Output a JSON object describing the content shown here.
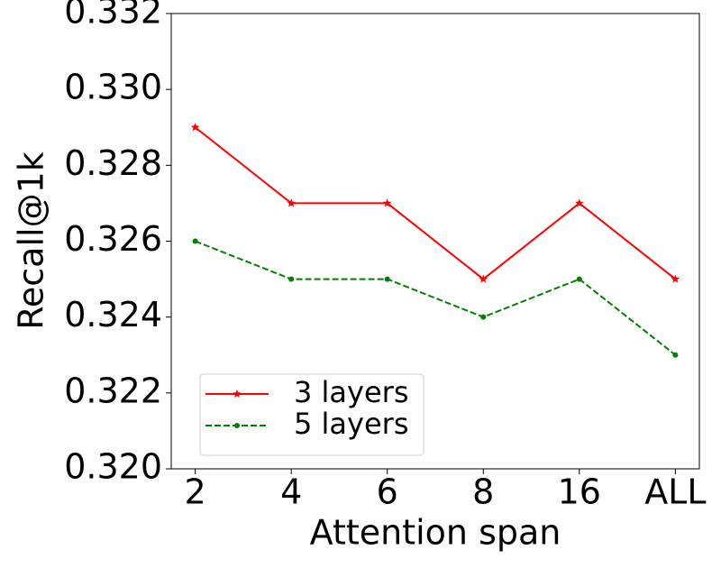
{
  "chart_data": {
    "type": "line",
    "x_label": "Attention span",
    "y_label": "Recall@1k",
    "categories": [
      "2",
      "4",
      "6",
      "8",
      "16",
      "ALL"
    ],
    "series": [
      {
        "name": "3 layers",
        "color": "#ff0000",
        "linestyle": "solid",
        "marker": "star",
        "values": [
          0.329,
          0.327,
          0.327,
          0.325,
          0.327,
          0.325
        ]
      },
      {
        "name": "5 layers",
        "color": "#008000",
        "linestyle": "dashed",
        "marker": "circle",
        "values": [
          0.326,
          0.325,
          0.325,
          0.324,
          0.325,
          0.323
        ]
      }
    ],
    "ylim": [
      0.32,
      0.332
    ],
    "yticks": [
      {
        "value": 0.32,
        "label": "0.320"
      },
      0.322,
      0.324,
      0.326,
      0.328,
      {
        "value": 0.33,
        "label": "0.330"
      },
      0.332
    ],
    "grid": false,
    "legend": "lower left"
  }
}
